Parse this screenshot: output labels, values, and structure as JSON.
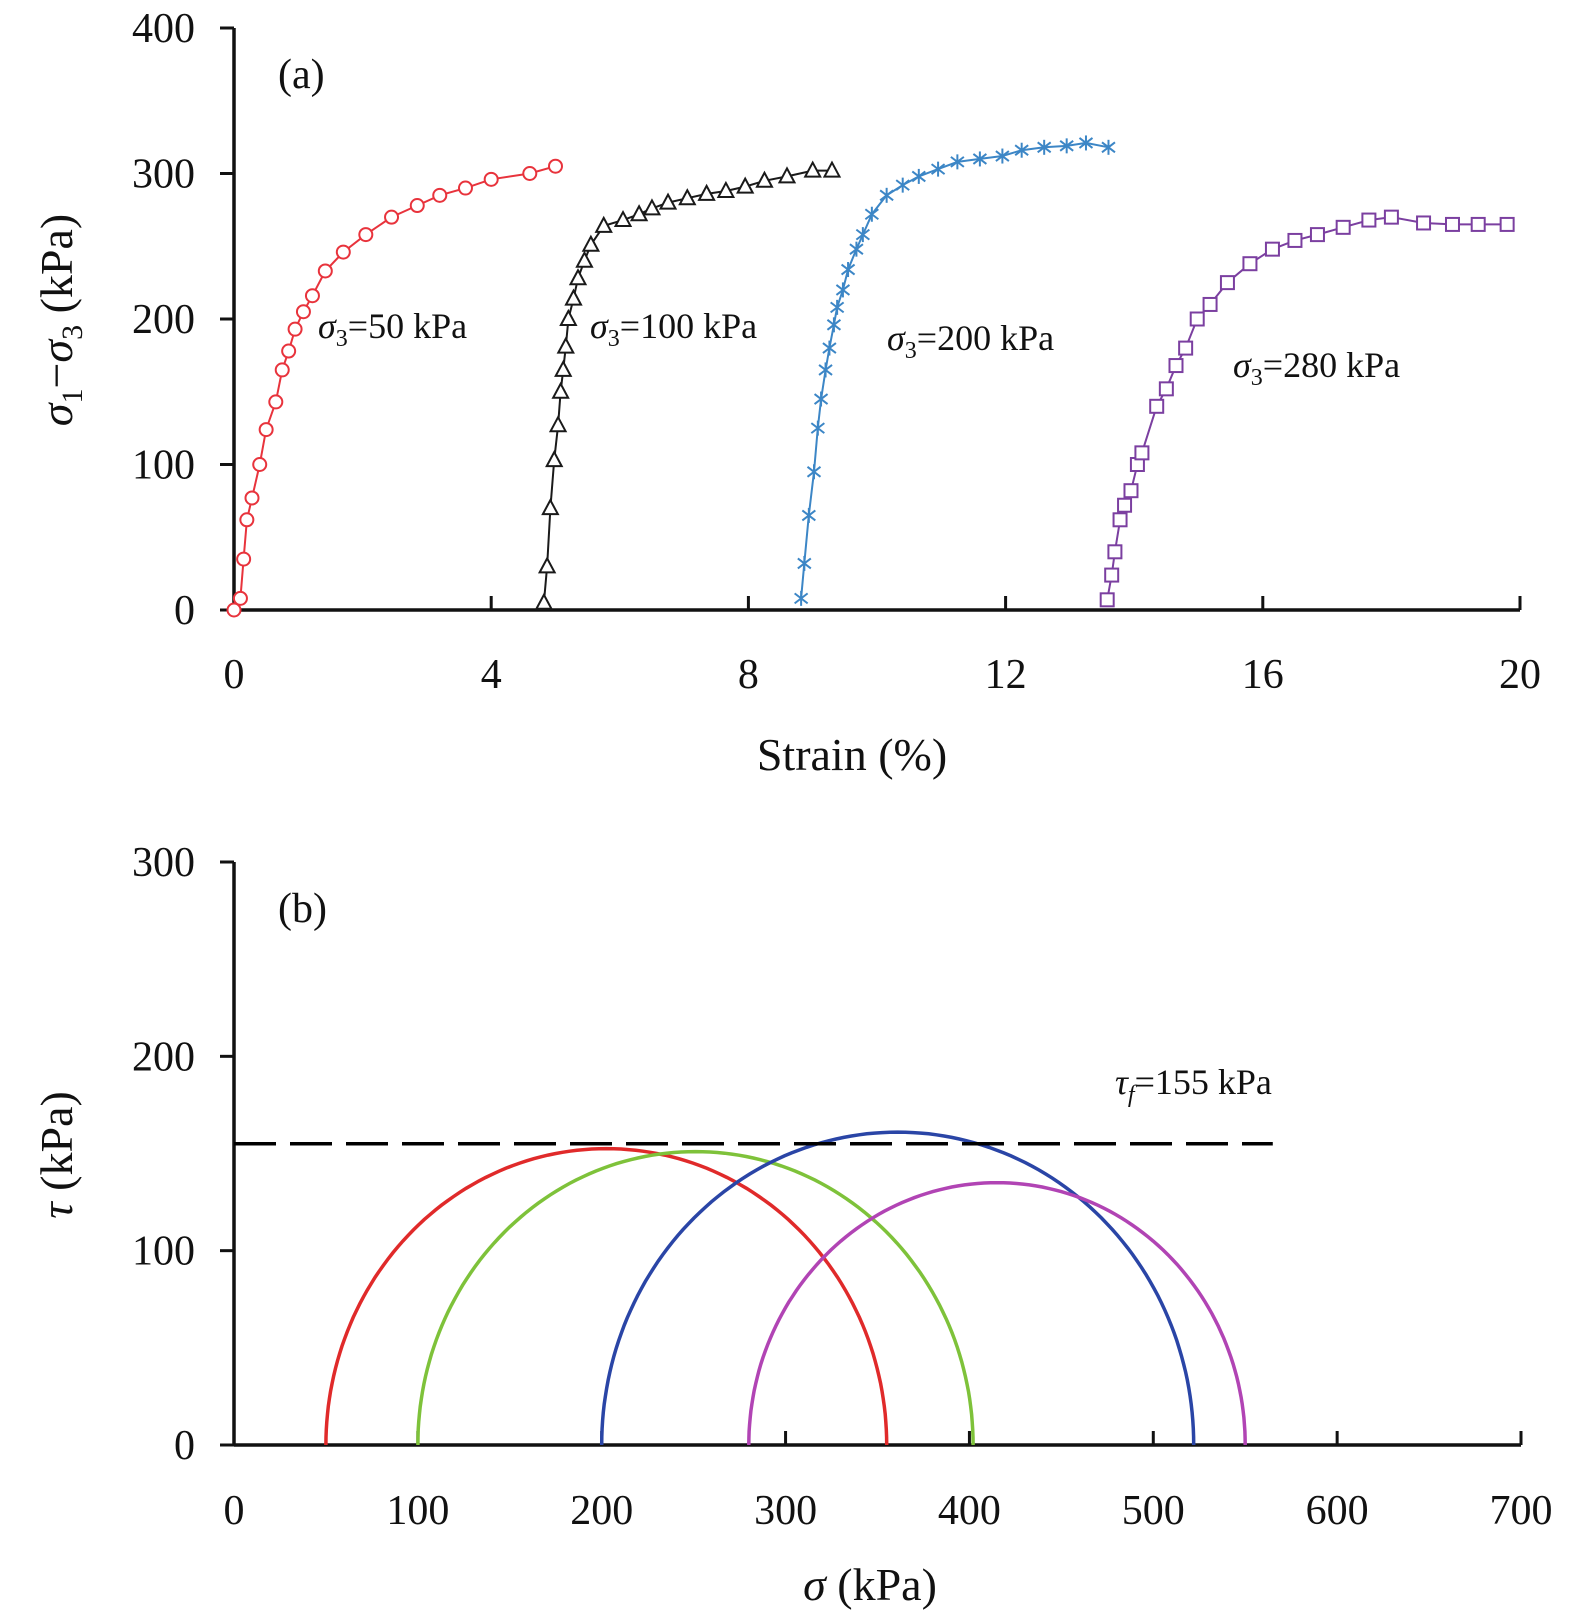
{
  "chart_data": [
    {
      "type": "line",
      "panel_label": "(a)",
      "xlabel": "Strain (%)",
      "ylabel": "σ1−σ3 (kPa)",
      "xlim": [
        0,
        20
      ],
      "ylim": [
        0,
        400
      ],
      "x_ticks": [
        "0",
        "4",
        "8",
        "12",
        "16",
        "20"
      ],
      "y_ticks": [
        "0",
        "100",
        "200",
        "300",
        "400"
      ],
      "grid": false,
      "series": [
        {
          "name": "σ3=50 kPa",
          "label_text": "=50 kPa",
          "color": "#e8333c",
          "marker": "circle",
          "points": [
            [
              0,
              0
            ],
            [
              0.1,
              8
            ],
            [
              0.15,
              35
            ],
            [
              0.2,
              62
            ],
            [
              0.28,
              77
            ],
            [
              0.4,
              100
            ],
            [
              0.5,
              124
            ],
            [
              0.65,
              143
            ],
            [
              0.75,
              165
            ],
            [
              0.85,
              178
            ],
            [
              0.95,
              193
            ],
            [
              1.08,
              205
            ],
            [
              1.22,
              216
            ],
            [
              1.42,
              233
            ],
            [
              1.7,
              246
            ],
            [
              2.05,
              258
            ],
            [
              2.45,
              270
            ],
            [
              2.85,
              278
            ],
            [
              3.2,
              285
            ],
            [
              3.6,
              290
            ],
            [
              4.0,
              296
            ],
            [
              4.6,
              300
            ],
            [
              5.0,
              305
            ]
          ]
        },
        {
          "name": "σ3=100 kPa",
          "label_text": "=100 kPa",
          "color": "#1a1a1a",
          "marker": "triangle",
          "points": [
            [
              4.82,
              5
            ],
            [
              4.87,
              30
            ],
            [
              4.92,
              70
            ],
            [
              4.98,
              103
            ],
            [
              5.04,
              127
            ],
            [
              5.08,
              150
            ],
            [
              5.12,
              165
            ],
            [
              5.16,
              181
            ],
            [
              5.2,
              200
            ],
            [
              5.28,
              214
            ],
            [
              5.35,
              228
            ],
            [
              5.45,
              240
            ],
            [
              5.55,
              251
            ],
            [
              5.75,
              264
            ],
            [
              6.05,
              268
            ],
            [
              6.3,
              272
            ],
            [
              6.5,
              276
            ],
            [
              6.75,
              280
            ],
            [
              7.05,
              283
            ],
            [
              7.35,
              286
            ],
            [
              7.65,
              288
            ],
            [
              7.95,
              291
            ],
            [
              8.25,
              295
            ],
            [
              8.6,
              298
            ],
            [
              9.0,
              302
            ],
            [
              9.3,
              302
            ]
          ]
        },
        {
          "name": "σ3=200 kPa",
          "label_text": "=200 kPa",
          "color": "#3c86c6",
          "marker": "asterisk",
          "points": [
            [
              8.82,
              8
            ],
            [
              8.87,
              32
            ],
            [
              8.94,
              65
            ],
            [
              9.02,
              95
            ],
            [
              9.08,
              125
            ],
            [
              9.13,
              145
            ],
            [
              9.2,
              165
            ],
            [
              9.26,
              180
            ],
            [
              9.33,
              196
            ],
            [
              9.38,
              208
            ],
            [
              9.47,
              220
            ],
            [
              9.55,
              234
            ],
            [
              9.68,
              248
            ],
            [
              9.78,
              258
            ],
            [
              9.92,
              272
            ],
            [
              10.15,
              285
            ],
            [
              10.4,
              292
            ],
            [
              10.65,
              298
            ],
            [
              10.95,
              303
            ],
            [
              11.25,
              308
            ],
            [
              11.6,
              310
            ],
            [
              11.95,
              312
            ],
            [
              12.25,
              316
            ],
            [
              12.6,
              318
            ],
            [
              12.95,
              319
            ],
            [
              13.25,
              321
            ],
            [
              13.6,
              318
            ]
          ]
        },
        {
          "name": "σ3=280 kPa",
          "label_text": "=280 kPa",
          "color": "#7b3fa0",
          "marker": "square",
          "points": [
            [
              13.58,
              7
            ],
            [
              13.65,
              24
            ],
            [
              13.7,
              40
            ],
            [
              13.78,
              62
            ],
            [
              13.85,
              72
            ],
            [
              13.95,
              82
            ],
            [
              14.05,
              100
            ],
            [
              14.12,
              108
            ],
            [
              14.35,
              140
            ],
            [
              14.5,
              152
            ],
            [
              14.65,
              168
            ],
            [
              14.8,
              180
            ],
            [
              14.98,
              200
            ],
            [
              15.18,
              210
            ],
            [
              15.45,
              225
            ],
            [
              15.8,
              238
            ],
            [
              16.15,
              248
            ],
            [
              16.5,
              254
            ],
            [
              16.85,
              258
            ],
            [
              17.25,
              263
            ],
            [
              17.65,
              268
            ],
            [
              18.0,
              270
            ],
            [
              18.5,
              266
            ],
            [
              18.95,
              265
            ],
            [
              19.35,
              265
            ],
            [
              19.8,
              265
            ]
          ]
        }
      ]
    },
    {
      "type": "line",
      "panel_label": "(b)",
      "xlabel": "σ (kPa)",
      "ylabel": "τ (kPa)",
      "xlim": [
        0,
        700
      ],
      "ylim": [
        0,
        300
      ],
      "x_ticks": [
        "0",
        "100",
        "200",
        "300",
        "400",
        "500",
        "600",
        "700"
      ],
      "y_ticks": [
        "0",
        "100",
        "200",
        "300"
      ],
      "grid": false,
      "failure_line": {
        "tau": 155,
        "x_range": [
          0,
          565
        ],
        "label": "τf=155 kPa",
        "label_text": "=155 kPa",
        "style": "dashed",
        "color": "#000000"
      },
      "circles": [
        {
          "sigma3": 50,
          "sigma1": 355,
          "color": "#e02a2a"
        },
        {
          "sigma3": 100,
          "sigma1": 402,
          "color": "#7ec23a"
        },
        {
          "sigma3": 200,
          "sigma1": 522,
          "color": "#2a45a6"
        },
        {
          "sigma3": 280,
          "sigma1": 550,
          "color": "#b144b4"
        }
      ]
    }
  ]
}
